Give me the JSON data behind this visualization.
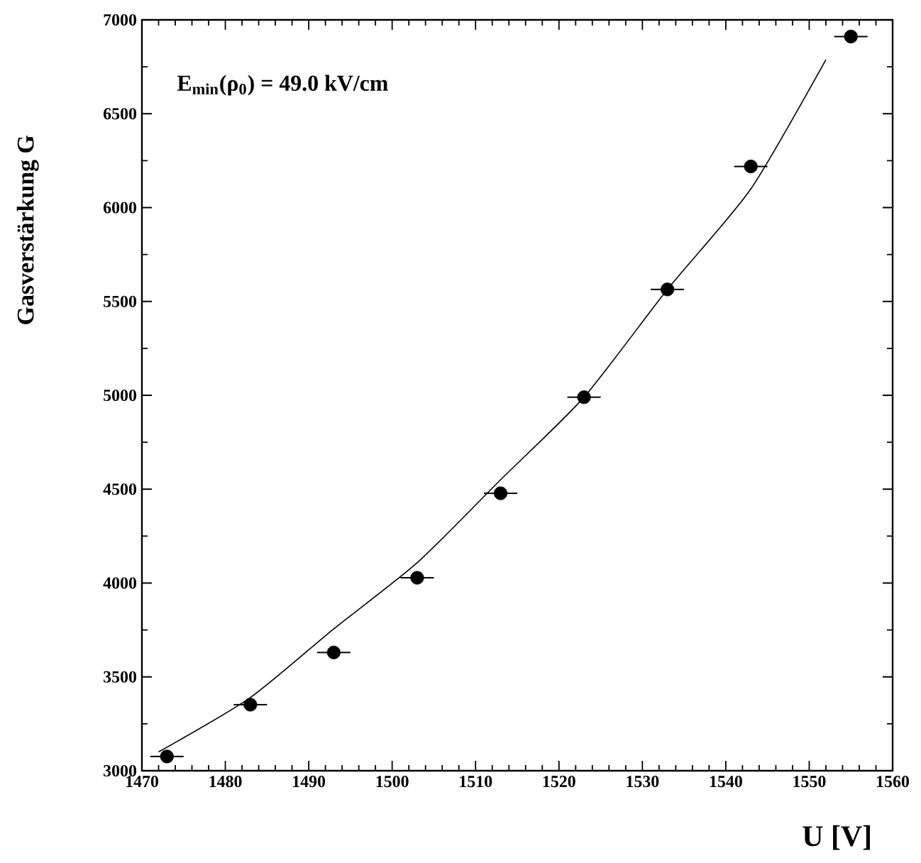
{
  "chart_data": {
    "type": "scatter",
    "xlabel": "U [V]",
    "ylabel": "Gasverstärkung G",
    "annotations": [
      "E$_{min}$(ρ$_{0}$) = 49.0 kV/cm"
    ],
    "xlim": [
      1470,
      1560
    ],
    "ylim": [
      3000,
      7000
    ],
    "xticks": [
      1470,
      1480,
      1490,
      1500,
      1510,
      1520,
      1530,
      1540,
      1550,
      1560
    ],
    "yticks": [
      3000,
      3500,
      4000,
      4500,
      5000,
      5500,
      6000,
      6500,
      7000
    ],
    "grid": false,
    "series": [
      {
        "color": "#000000",
        "marker": "circle",
        "x": [
          1473,
          1483,
          1493,
          1503,
          1513,
          1523,
          1533,
          1543,
          1555
        ],
        "values": [
          3076,
          3352,
          3630,
          4028,
          4478,
          4990,
          5564,
          6219,
          6911
        ],
        "xerrors": [
          2,
          2,
          2,
          2,
          2,
          2,
          2,
          2,
          2
        ]
      },
      {
        "type": "line",
        "color": "#000000",
        "marker": "none",
        "line_style": "solid",
        "x": [
          1472,
          1483,
          1493,
          1503,
          1513,
          1523,
          1533,
          1543,
          1552
        ],
        "values": [
          3100,
          3390,
          3756,
          4108,
          4550,
          4990,
          5564,
          6099,
          6788
        ]
      }
    ]
  }
}
